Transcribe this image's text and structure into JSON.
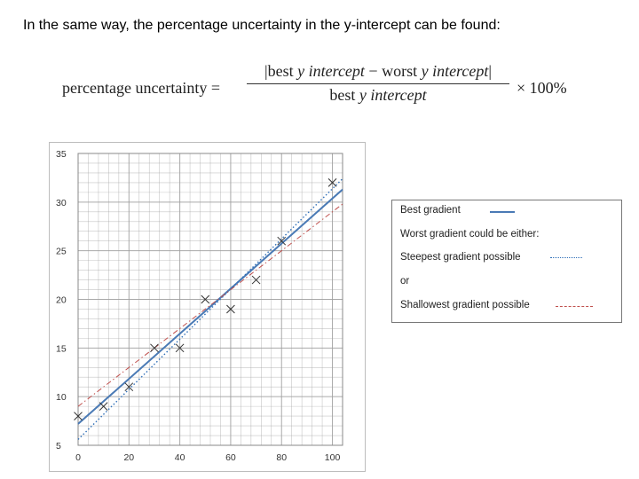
{
  "heading": "In the same way, the percentage uncertainty in the y-intercept can be found:",
  "formula": {
    "lhs": "percentage uncertainty =",
    "numerator_parts": [
      "|best ",
      "y intercept",
      " − worst ",
      "y intercept",
      "|"
    ],
    "denominator_parts": [
      "best ",
      "y intercept"
    ],
    "rhs": "× 100%"
  },
  "legend": {
    "best": "Best gradient",
    "worst": "Worst gradient could be either:",
    "steep": "Steepest gradient possible",
    "or": "or",
    "shallow": "Shallowest gradient possible"
  },
  "colors": {
    "best_line": "#4a7ab5",
    "steep_line": "#2f6fb8",
    "shallow_line": "#c0504d",
    "grid": "#a0a0a0",
    "marker": "#333333"
  },
  "chart_data": {
    "type": "scatter",
    "x_ticks": [
      "0",
      "20",
      "40",
      "60",
      "80",
      "100"
    ],
    "y_ticks": [
      "5",
      "10",
      "15",
      "20",
      "25",
      "30",
      "35"
    ],
    "xlim": [
      0,
      104
    ],
    "ylim": [
      5,
      35
    ],
    "grid": true,
    "points": [
      {
        "x": 0,
        "y": 8
      },
      {
        "x": 10,
        "y": 9
      },
      {
        "x": 20,
        "y": 11
      },
      {
        "x": 30,
        "y": 15
      },
      {
        "x": 40,
        "y": 15
      },
      {
        "x": 50,
        "y": 20
      },
      {
        "x": 60,
        "y": 19
      },
      {
        "x": 70,
        "y": 22
      },
      {
        "x": 80,
        "y": 26
      },
      {
        "x": 100,
        "y": 32
      }
    ],
    "lines": [
      {
        "role": "best",
        "style": "solid",
        "x": [
          0,
          104
        ],
        "y": [
          7.2,
          31.3
        ]
      },
      {
        "role": "steepest",
        "style": "dotted",
        "x": [
          0,
          104
        ],
        "y": [
          5.6,
          32.4
        ]
      },
      {
        "role": "shallowest",
        "style": "dash-dot",
        "x": [
          0,
          104
        ],
        "y": [
          9.0,
          29.8
        ]
      }
    ]
  }
}
